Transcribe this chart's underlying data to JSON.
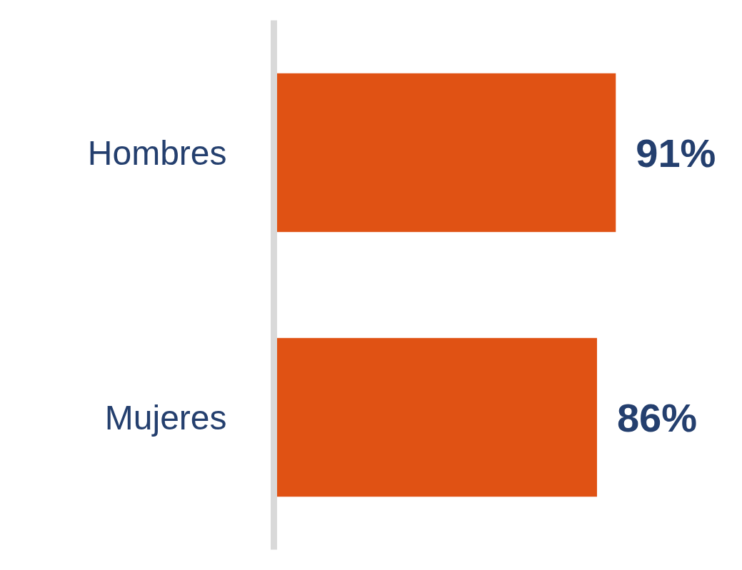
{
  "chart_data": {
    "type": "bar",
    "orientation": "horizontal",
    "categories": [
      "Hombres",
      "Mujeres"
    ],
    "values": [
      91,
      86
    ],
    "value_labels": [
      "91%",
      "86%"
    ],
    "color": "#e05214",
    "tick_labels": "y"
  }
}
